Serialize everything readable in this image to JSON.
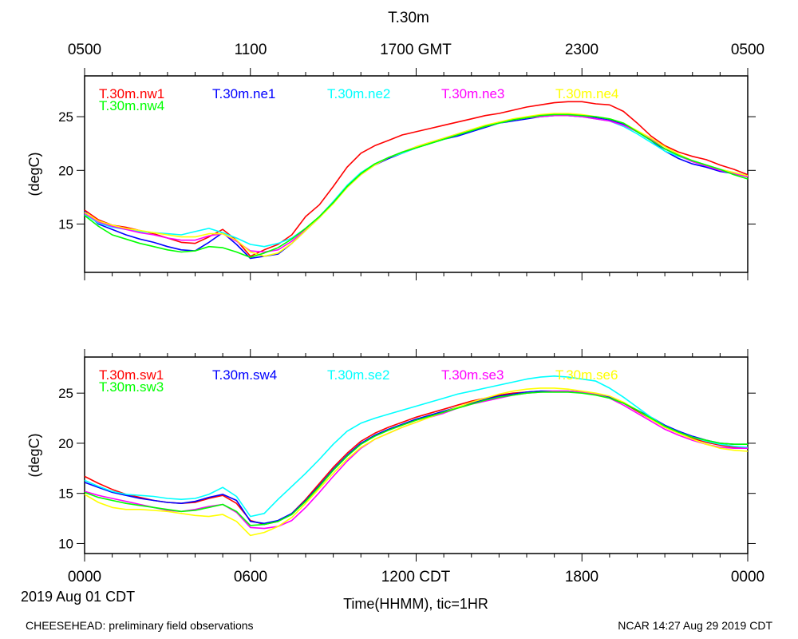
{
  "figure": {
    "title": "T.30m",
    "date_label": "2019 Aug 01 CDT",
    "x_axis_label": "Time(HHMM), tic=1HR",
    "top_ticks": [
      "0500",
      "1100",
      "1700 GMT",
      "2300",
      "0500"
    ],
    "bottom_ticks": [
      "0000",
      "0600",
      "1200 CDT",
      "1800",
      "0000"
    ],
    "footer_left": "CHEESEHEAD: preliminary field observations",
    "footer_right": "NCAR 14:27 Aug 29 2019 CDT"
  },
  "chart_data": [
    {
      "type": "line",
      "panel": "top",
      "title": "T.30m",
      "xlabel": "Time(HHMM), tic=1HR",
      "ylabel": "(degC)",
      "xlim": [
        0,
        24
      ],
      "ylim": [
        10.5,
        28.8
      ],
      "yticks": [
        15,
        20,
        25
      ],
      "x": [
        0,
        0.5,
        1,
        1.5,
        2,
        2.5,
        3,
        3.5,
        4,
        4.5,
        5,
        5.5,
        6,
        6.5,
        7,
        7.5,
        8,
        8.5,
        9,
        9.5,
        10,
        10.5,
        11,
        11.5,
        12,
        12.5,
        13,
        13.5,
        14,
        14.5,
        15,
        15.5,
        16,
        16.5,
        17,
        17.5,
        18,
        18.5,
        19,
        19.5,
        20,
        20.5,
        21,
        21.5,
        22,
        22.5,
        23,
        23.5,
        24
      ],
      "series": [
        {
          "name": "T.30m.nw1",
          "color": "#ff0000",
          "values": [
            16.3,
            15.4,
            14.9,
            14.7,
            14.4,
            14.1,
            13.7,
            13.3,
            13.2,
            13.8,
            14.5,
            13.5,
            12.0,
            12.6,
            13.1,
            14.0,
            15.7,
            16.8,
            18.5,
            20.3,
            21.6,
            22.3,
            22.8,
            23.3,
            23.6,
            23.9,
            24.2,
            24.5,
            24.8,
            25.1,
            25.3,
            25.6,
            25.9,
            26.1,
            26.3,
            26.4,
            26.4,
            26.2,
            26.1,
            25.5,
            24.4,
            23.2,
            22.3,
            21.7,
            21.3,
            21.0,
            20.5,
            20.1,
            19.6
          ]
        },
        {
          "name": "T.30m.ne1",
          "color": "#0000ff",
          "values": [
            16.2,
            15.0,
            14.5,
            14.0,
            13.6,
            13.3,
            12.9,
            12.6,
            12.5,
            13.3,
            14.2,
            13.1,
            11.8,
            12.0,
            12.2,
            13.2,
            14.4,
            15.6,
            17.0,
            18.5,
            19.7,
            20.5,
            21.1,
            21.6,
            22.1,
            22.5,
            22.9,
            23.2,
            23.6,
            24.0,
            24.4,
            24.6,
            24.8,
            25.0,
            25.1,
            25.1,
            25.0,
            24.9,
            24.7,
            24.3,
            23.6,
            22.8,
            21.8,
            21.1,
            20.6,
            20.3,
            19.9,
            19.7,
            19.4
          ]
        },
        {
          "name": "T.30m.ne2",
          "color": "#00ffff",
          "values": [
            15.9,
            15.1,
            14.7,
            14.5,
            14.3,
            14.2,
            14.1,
            14.0,
            14.3,
            14.6,
            14.2,
            13.7,
            13.1,
            12.9,
            13.2,
            13.7,
            14.6,
            15.7,
            17.1,
            18.6,
            19.8,
            20.6,
            21.2,
            21.6,
            22.1,
            22.5,
            22.9,
            23.3,
            23.7,
            24.1,
            24.4,
            24.7,
            24.9,
            25.0,
            25.1,
            25.1,
            25.0,
            24.8,
            24.6,
            24.1,
            23.4,
            22.6,
            21.8,
            21.3,
            20.9,
            20.5,
            20.1,
            19.8,
            19.5
          ]
        },
        {
          "name": "T.30m.ne3",
          "color": "#ff00ff",
          "values": [
            16.0,
            15.2,
            14.8,
            14.5,
            14.2,
            14.0,
            13.7,
            13.5,
            13.5,
            13.9,
            14.1,
            13.4,
            12.5,
            12.4,
            12.6,
            13.4,
            14.5,
            15.7,
            17.0,
            18.4,
            19.6,
            20.5,
            21.2,
            21.7,
            22.2,
            22.6,
            23.0,
            23.4,
            23.8,
            24.1,
            24.5,
            24.7,
            24.9,
            25.0,
            25.1,
            25.1,
            25.0,
            24.8,
            24.6,
            24.2,
            23.6,
            22.9,
            22.0,
            21.4,
            20.8,
            20.4,
            20.0,
            19.7,
            19.4
          ]
        },
        {
          "name": "T.30m.ne4",
          "color": "#ffff00",
          "values": [
            16.1,
            15.3,
            14.9,
            14.6,
            14.4,
            14.2,
            14.0,
            13.8,
            13.8,
            14.1,
            14.1,
            13.5,
            12.4,
            12.0,
            12.3,
            13.2,
            14.4,
            15.6,
            16.9,
            18.4,
            19.6,
            20.5,
            21.2,
            21.7,
            22.2,
            22.6,
            23.0,
            23.4,
            23.8,
            24.2,
            24.5,
            24.8,
            25.0,
            25.2,
            25.3,
            25.3,
            25.2,
            25.0,
            24.8,
            24.4,
            23.7,
            23.0,
            22.2,
            21.5,
            20.9,
            20.5,
            20.1,
            19.8,
            19.5
          ]
        },
        {
          "name": "T.30m.nw4",
          "color": "#00ff00",
          "values": [
            15.8,
            14.8,
            14.0,
            13.6,
            13.2,
            12.9,
            12.6,
            12.4,
            12.5,
            12.9,
            12.8,
            12.4,
            11.9,
            12.3,
            12.8,
            13.6,
            14.6,
            15.7,
            17.0,
            18.5,
            19.7,
            20.6,
            21.2,
            21.7,
            22.1,
            22.5,
            22.9,
            23.3,
            23.7,
            24.1,
            24.4,
            24.7,
            24.9,
            25.1,
            25.2,
            25.2,
            25.1,
            25.0,
            24.8,
            24.4,
            23.6,
            22.8,
            22.0,
            21.4,
            20.9,
            20.5,
            20.1,
            19.6,
            19.2
          ]
        }
      ]
    },
    {
      "type": "line",
      "panel": "bottom",
      "title": "",
      "xlabel": "Time(HHMM), tic=1HR",
      "ylabel": "(degC)",
      "xlim": [
        0,
        24
      ],
      "ylim": [
        9.0,
        28.6
      ],
      "yticks": [
        10,
        15,
        20,
        25
      ],
      "x": [
        0,
        0.5,
        1,
        1.5,
        2,
        2.5,
        3,
        3.5,
        4,
        4.5,
        5,
        5.5,
        6,
        6.5,
        7,
        7.5,
        8,
        8.5,
        9,
        9.5,
        10,
        10.5,
        11,
        11.5,
        12,
        12.5,
        13,
        13.5,
        14,
        14.5,
        15,
        15.5,
        16,
        16.5,
        17,
        17.5,
        18,
        18.5,
        19,
        19.5,
        20,
        20.5,
        21,
        21.5,
        22,
        22.5,
        23,
        23.5,
        24
      ],
      "series": [
        {
          "name": "T.30m.sw1",
          "color": "#ff0000",
          "values": [
            16.7,
            16.0,
            15.4,
            14.9,
            14.6,
            14.3,
            14.1,
            14.0,
            14.1,
            14.5,
            14.8,
            14.0,
            12.3,
            11.9,
            12.2,
            13.0,
            14.4,
            16.0,
            17.6,
            19.0,
            20.2,
            21.0,
            21.6,
            22.1,
            22.6,
            23.0,
            23.4,
            23.8,
            24.2,
            24.5,
            24.8,
            25.0,
            25.1,
            25.2,
            25.2,
            25.2,
            25.1,
            24.9,
            24.6,
            24.0,
            23.2,
            22.4,
            21.6,
            21.0,
            20.5,
            20.1,
            19.8,
            19.6,
            19.5
          ]
        },
        {
          "name": "T.30m.sw4",
          "color": "#0000ff",
          "values": [
            16.1,
            15.6,
            15.1,
            14.8,
            14.5,
            14.3,
            14.1,
            14.0,
            14.2,
            14.6,
            14.9,
            14.3,
            12.2,
            12.0,
            12.3,
            13.0,
            14.3,
            15.8,
            17.4,
            18.8,
            20.0,
            20.8,
            21.4,
            21.9,
            22.4,
            22.8,
            23.2,
            23.6,
            24.0,
            24.4,
            24.7,
            24.9,
            25.1,
            25.2,
            25.2,
            25.2,
            25.1,
            24.9,
            24.6,
            24.0,
            23.3,
            22.6,
            21.8,
            21.2,
            20.7,
            20.3,
            20.0,
            19.9,
            19.9
          ]
        },
        {
          "name": "T.30m.se2",
          "color": "#00ffff",
          "values": [
            16.3,
            15.7,
            15.2,
            14.9,
            14.8,
            14.7,
            14.5,
            14.4,
            14.5,
            14.9,
            15.6,
            14.7,
            12.7,
            13.0,
            14.4,
            15.7,
            17.0,
            18.4,
            19.9,
            21.2,
            22.0,
            22.5,
            22.9,
            23.3,
            23.7,
            24.1,
            24.5,
            24.9,
            25.2,
            25.5,
            25.8,
            26.1,
            26.4,
            26.6,
            26.7,
            26.6,
            26.4,
            26.2,
            25.5,
            24.6,
            23.6,
            22.6,
            21.7,
            21.1,
            20.6,
            20.2,
            19.9,
            19.7,
            19.6
          ]
        },
        {
          "name": "T.30m.se3",
          "color": "#ff00ff",
          "values": [
            15.2,
            14.8,
            14.5,
            14.2,
            13.9,
            13.6,
            13.3,
            13.2,
            13.4,
            13.7,
            13.9,
            13.1,
            11.6,
            11.5,
            11.7,
            12.3,
            13.6,
            15.1,
            16.7,
            18.2,
            19.5,
            20.4,
            21.0,
            21.6,
            22.1,
            22.6,
            23.0,
            23.5,
            23.9,
            24.2,
            24.5,
            24.8,
            25.0,
            25.1,
            25.2,
            25.2,
            25.1,
            24.9,
            24.5,
            23.8,
            23.0,
            22.2,
            21.4,
            20.8,
            20.3,
            19.9,
            19.6,
            19.5,
            19.5
          ]
        },
        {
          "name": "T.30m.se6",
          "color": "#ffff00",
          "values": [
            14.9,
            14.1,
            13.6,
            13.4,
            13.4,
            13.3,
            13.2,
            13.0,
            12.8,
            12.7,
            12.9,
            12.2,
            10.8,
            11.1,
            11.7,
            12.6,
            14.0,
            15.5,
            17.0,
            18.4,
            19.6,
            20.4,
            21.0,
            21.6,
            22.1,
            22.6,
            23.1,
            23.6,
            24.1,
            24.5,
            24.9,
            25.2,
            25.4,
            25.5,
            25.5,
            25.4,
            25.2,
            25.0,
            24.7,
            24.1,
            23.3,
            22.4,
            21.6,
            21.0,
            20.4,
            19.9,
            19.5,
            19.3,
            19.2
          ]
        },
        {
          "name": "T.30m.sw3",
          "color": "#00ff00",
          "values": [
            15.1,
            14.6,
            14.3,
            14.0,
            13.8,
            13.6,
            13.4,
            13.2,
            13.3,
            13.6,
            13.9,
            13.2,
            11.8,
            11.9,
            12.2,
            12.9,
            14.2,
            15.7,
            17.3,
            18.7,
            19.9,
            20.7,
            21.3,
            21.8,
            22.3,
            22.7,
            23.1,
            23.5,
            23.9,
            24.3,
            24.6,
            24.8,
            25.0,
            25.1,
            25.1,
            25.1,
            25.0,
            24.8,
            24.5,
            24.0,
            23.3,
            22.5,
            21.7,
            21.1,
            20.6,
            20.3,
            20.0,
            19.9,
            19.9
          ]
        }
      ]
    }
  ]
}
